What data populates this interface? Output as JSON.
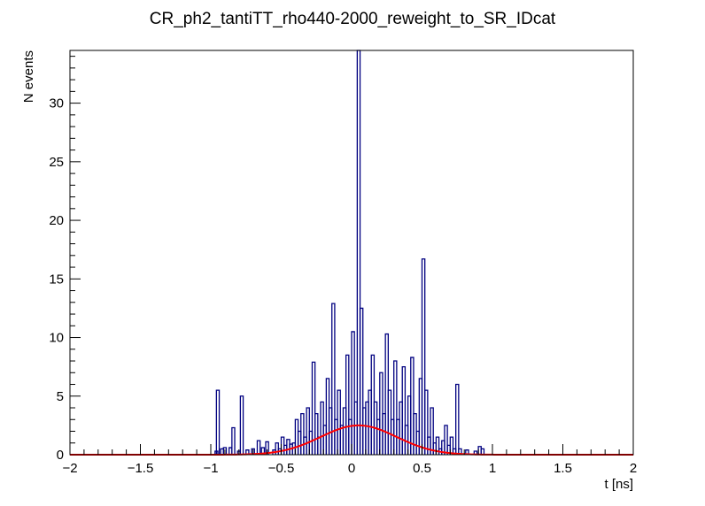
{
  "chart_data": {
    "type": "histogram",
    "title": "CR_ph2_tantiTT_rho440-2000_reweight_to_SR_IDcat",
    "xlabel": "t [ns]",
    "ylabel": "N events",
    "xlim": [
      -2,
      2
    ],
    "ylim": [
      0,
      34.5
    ],
    "grid": false,
    "x_ticks": [
      "−2",
      "−1.5",
      "−1",
      "−0.5",
      "0",
      "0.5",
      "1",
      "1.5",
      "2"
    ],
    "y_ticks": [
      "0",
      "5",
      "10",
      "15",
      "20",
      "25",
      "30"
    ],
    "colors": {
      "histogram": "#000080",
      "fit": "#ff0000"
    },
    "bin_width": 0.02,
    "histogram": [
      {
        "x": -0.96,
        "y": 0.3
      },
      {
        "x": -0.95,
        "y": 5.5
      },
      {
        "x": -0.92,
        "y": 0.5
      },
      {
        "x": -0.9,
        "y": 0.6
      },
      {
        "x": -0.86,
        "y": 0.6
      },
      {
        "x": -0.84,
        "y": 2.3
      },
      {
        "x": -0.8,
        "y": 0.3
      },
      {
        "x": -0.78,
        "y": 5.0
      },
      {
        "x": -0.74,
        "y": 0.4
      },
      {
        "x": -0.7,
        "y": 0.5
      },
      {
        "x": -0.66,
        "y": 1.2
      },
      {
        "x": -0.63,
        "y": 0.6
      },
      {
        "x": -0.6,
        "y": 1.1
      },
      {
        "x": -0.55,
        "y": 0.4
      },
      {
        "x": -0.53,
        "y": 1.0
      },
      {
        "x": -0.51,
        "y": 0.5
      },
      {
        "x": -0.49,
        "y": 1.5
      },
      {
        "x": -0.47,
        "y": 0.8
      },
      {
        "x": -0.45,
        "y": 1.3
      },
      {
        "x": -0.43,
        "y": 0.9
      },
      {
        "x": -0.41,
        "y": 1.0
      },
      {
        "x": -0.39,
        "y": 3.0
      },
      {
        "x": -0.37,
        "y": 2.0
      },
      {
        "x": -0.35,
        "y": 3.5
      },
      {
        "x": -0.33,
        "y": 1.5
      },
      {
        "x": -0.31,
        "y": 4.0
      },
      {
        "x": -0.29,
        "y": 2.0
      },
      {
        "x": -0.27,
        "y": 7.9
      },
      {
        "x": -0.25,
        "y": 3.5
      },
      {
        "x": -0.23,
        "y": 1.5
      },
      {
        "x": -0.21,
        "y": 4.5
      },
      {
        "x": -0.19,
        "y": 2.5
      },
      {
        "x": -0.17,
        "y": 6.5
      },
      {
        "x": -0.15,
        "y": 4.0
      },
      {
        "x": -0.13,
        "y": 12.9
      },
      {
        "x": -0.11,
        "y": 3.0
      },
      {
        "x": -0.09,
        "y": 5.5
      },
      {
        "x": -0.07,
        "y": 2.5
      },
      {
        "x": -0.05,
        "y": 4.0
      },
      {
        "x": -0.03,
        "y": 8.5
      },
      {
        "x": -0.01,
        "y": 3.0
      },
      {
        "x": 0.01,
        "y": 10.5
      },
      {
        "x": 0.03,
        "y": 4.5
      },
      {
        "x": 0.05,
        "y": 34.5
      },
      {
        "x": 0.07,
        "y": 12.5
      },
      {
        "x": 0.09,
        "y": 4.0
      },
      {
        "x": 0.11,
        "y": 4.5
      },
      {
        "x": 0.13,
        "y": 5.5
      },
      {
        "x": 0.15,
        "y": 8.5
      },
      {
        "x": 0.17,
        "y": 4.5
      },
      {
        "x": 0.19,
        "y": 3.0
      },
      {
        "x": 0.21,
        "y": 7.0
      },
      {
        "x": 0.23,
        "y": 3.5
      },
      {
        "x": 0.25,
        "y": 10.3
      },
      {
        "x": 0.27,
        "y": 5.5
      },
      {
        "x": 0.29,
        "y": 3.0
      },
      {
        "x": 0.31,
        "y": 8.0
      },
      {
        "x": 0.33,
        "y": 3.0
      },
      {
        "x": 0.35,
        "y": 4.5
      },
      {
        "x": 0.37,
        "y": 7.5
      },
      {
        "x": 0.39,
        "y": 2.5
      },
      {
        "x": 0.41,
        "y": 5.0
      },
      {
        "x": 0.43,
        "y": 8.3
      },
      {
        "x": 0.45,
        "y": 3.5
      },
      {
        "x": 0.47,
        "y": 2.0
      },
      {
        "x": 0.49,
        "y": 6.5
      },
      {
        "x": 0.51,
        "y": 16.7
      },
      {
        "x": 0.53,
        "y": 5.5
      },
      {
        "x": 0.55,
        "y": 1.5
      },
      {
        "x": 0.57,
        "y": 4.0
      },
      {
        "x": 0.59,
        "y": 1.0
      },
      {
        "x": 0.61,
        "y": 1.5
      },
      {
        "x": 0.63,
        "y": 0.5
      },
      {
        "x": 0.65,
        "y": 1.2
      },
      {
        "x": 0.67,
        "y": 2.5
      },
      {
        "x": 0.69,
        "y": 0.8
      },
      {
        "x": 0.71,
        "y": 1.5
      },
      {
        "x": 0.73,
        "y": 0.5
      },
      {
        "x": 0.75,
        "y": 6.0
      },
      {
        "x": 0.77,
        "y": 0.5
      },
      {
        "x": 0.82,
        "y": 0.4
      },
      {
        "x": 0.88,
        "y": 0.3
      },
      {
        "x": 0.91,
        "y": 0.7
      },
      {
        "x": 0.93,
        "y": 0.5
      }
    ],
    "fit": {
      "name": "gaussian",
      "amplitude": 2.5,
      "mean": 0.05,
      "sigma": 0.27
    }
  }
}
